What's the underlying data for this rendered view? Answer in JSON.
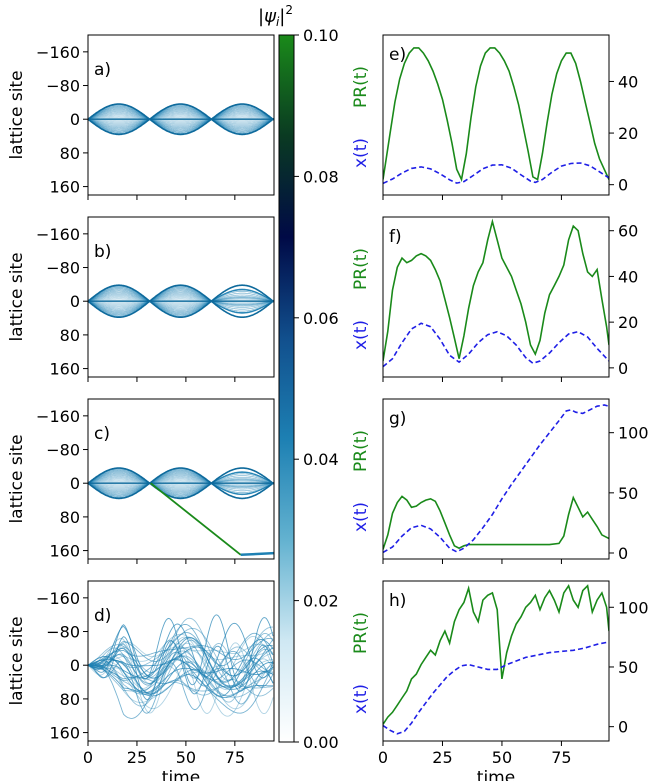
{
  "chart_data": [
    {
      "type": "heatmap",
      "panel_label": "a)",
      "xlabel": "",
      "ylabel": "lattice site",
      "xlim": [
        0,
        95
      ],
      "ylim": [
        180,
        -200
      ],
      "yticks": [
        -160,
        -80,
        0,
        80,
        160
      ],
      "xticks": [
        0,
        25,
        50,
        75
      ],
      "pattern": "periodic breathing wavepacket",
      "envelope": {
        "amplitude": 36,
        "period": 31.5,
        "max_time": 95
      }
    },
    {
      "type": "heatmap",
      "panel_label": "b)",
      "xlabel": "",
      "ylabel": "lattice site",
      "xlim": [
        0,
        95
      ],
      "ylim": [
        180,
        -200
      ],
      "yticks": [
        -160,
        -80,
        0,
        80,
        160
      ],
      "xticks": [
        0,
        25,
        50,
        75
      ],
      "pattern": "breathing wavepacket with slight dephasing",
      "envelope": {
        "amplitude": 38,
        "period": 31.5,
        "max_time": 95
      }
    },
    {
      "type": "heatmap",
      "panel_label": "c)",
      "xlabel": "",
      "ylabel": "lattice site",
      "xlim": [
        0,
        95
      ],
      "ylim": [
        180,
        -200
      ],
      "yticks": [
        -160,
        -80,
        0,
        80,
        160
      ],
      "xticks": [
        0,
        25,
        50,
        75
      ],
      "pattern": "breathing wavepacket with a ballistic branch",
      "envelope": {
        "amplitude": 36,
        "period": 31.5,
        "max_time": 95
      },
      "branch": {
        "t_start": 32,
        "x_start": 0,
        "t_end": 78,
        "x_end": 170
      }
    },
    {
      "type": "heatmap",
      "panel_label": "d)",
      "xlabel": "time",
      "ylabel": "lattice site",
      "xlim": [
        0,
        95
      ],
      "ylim": [
        180,
        -200
      ],
      "yticks": [
        -160,
        -80,
        0,
        80,
        160
      ],
      "xticks": [
        0,
        25,
        50,
        75
      ],
      "xticklabels": [
        "0",
        "25",
        "50",
        "75"
      ],
      "pattern": "diffuse spreading wavepacket"
    },
    {
      "type": "line",
      "panel_label": "e)",
      "xlabel": "",
      "ylabel_left_top": "PR(t)",
      "ylabel_left_bottom": "x(t)",
      "xlim": [
        0,
        95
      ],
      "ylim": [
        -4,
        58
      ],
      "yticks": [
        0,
        20,
        40
      ],
      "xticks": [
        0,
        25,
        50,
        75
      ],
      "series": [
        {
          "name": "PR(t)",
          "color": "#1a8a1a",
          "style": "solid",
          "x": [
            0,
            1,
            3,
            5,
            7,
            9,
            11,
            13,
            15,
            17,
            19,
            21,
            23,
            25,
            27,
            29,
            31,
            33,
            35,
            37,
            39,
            41,
            43,
            45,
            47,
            49,
            51,
            53,
            55,
            57,
            59,
            61,
            63,
            65,
            67,
            69,
            71,
            73,
            75,
            77,
            79,
            81,
            83,
            85,
            87,
            89,
            91,
            93,
            95
          ],
          "y": [
            2,
            8,
            20,
            32,
            41,
            47,
            51,
            53,
            53,
            51,
            48,
            44,
            39,
            33,
            25,
            16,
            6,
            2,
            12,
            26,
            38,
            46,
            51,
            53,
            53,
            51,
            48,
            44,
            38,
            31,
            22,
            13,
            3,
            2,
            12,
            24,
            35,
            43,
            48,
            51,
            51,
            47,
            40,
            32,
            24,
            16,
            10,
            6,
            2
          ]
        },
        {
          "name": "x(t)",
          "color": "#1f1fe6",
          "style": "dashed",
          "x": [
            0,
            4,
            8,
            12,
            16,
            20,
            24,
            28,
            31,
            34,
            38,
            42,
            46,
            50,
            54,
            58,
            62,
            64,
            67,
            71,
            75,
            79,
            83,
            87,
            91,
            95
          ],
          "y": [
            0.5,
            2.2,
            4.5,
            6.3,
            6.9,
            6.1,
            4.2,
            1.9,
            0.6,
            1.2,
            3.6,
            6.2,
            7.6,
            7.7,
            6.4,
            3.8,
            1.4,
            0.9,
            2.0,
            4.8,
            7.2,
            8.2,
            8.4,
            7.3,
            5.0,
            2.6
          ]
        }
      ]
    },
    {
      "type": "line",
      "panel_label": "f)",
      "xlabel": "",
      "ylabel_left_top": "PR(t)",
      "ylabel_left_bottom": "x(t)",
      "xlim": [
        0,
        95
      ],
      "ylim": [
        -4,
        66
      ],
      "yticks": [
        0,
        20,
        40,
        60
      ],
      "xticks": [
        0,
        25,
        50,
        75
      ],
      "series": [
        {
          "name": "PR(t)",
          "color": "#1a8a1a",
          "style": "solid",
          "x": [
            0,
            2,
            4,
            6,
            8,
            10,
            12,
            14,
            16,
            18,
            20,
            22,
            24,
            26,
            28,
            30,
            32,
            34,
            36,
            38,
            40,
            42,
            44,
            46,
            48,
            50,
            52,
            54,
            56,
            58,
            60,
            62,
            64,
            66,
            68,
            70,
            72,
            74,
            76,
            78,
            80,
            82,
            84,
            86,
            88,
            90,
            92,
            94,
            95
          ],
          "y": [
            3,
            16,
            34,
            44,
            48,
            46,
            47,
            49,
            50,
            49,
            47,
            43,
            38,
            30,
            22,
            13,
            4,
            14,
            26,
            36,
            42,
            46,
            56,
            64,
            56,
            48,
            44,
            40,
            34,
            28,
            20,
            10,
            6,
            12,
            24,
            32,
            36,
            40,
            45,
            56,
            62,
            60,
            50,
            42,
            40,
            43,
            30,
            18,
            10
          ]
        },
        {
          "name": "x(t)",
          "color": "#1f1fe6",
          "style": "dashed",
          "x": [
            0,
            4,
            8,
            12,
            16,
            20,
            24,
            28,
            32,
            36,
            40,
            44,
            48,
            52,
            56,
            60,
            63,
            66,
            70,
            74,
            78,
            82,
            86,
            90,
            95
          ],
          "y": [
            0.5,
            4,
            11,
            17,
            19.5,
            18,
            12.5,
            5.5,
            2.5,
            6,
            11,
            14.5,
            15.8,
            14,
            10,
            4.5,
            2,
            3,
            6.5,
            11,
            14.8,
            15.8,
            13.5,
            8.5,
            3
          ]
        }
      ]
    },
    {
      "type": "line",
      "panel_label": "g)",
      "xlabel": "",
      "ylabel_left_top": "PR(t)",
      "ylabel_left_bottom": "x(t)",
      "xlim": [
        0,
        95
      ],
      "ylim": [
        -5,
        128
      ],
      "yticks": [
        0,
        50,
        100
      ],
      "xticks": [
        0,
        25,
        50,
        75
      ],
      "series": [
        {
          "name": "PR(t)",
          "color": "#1a8a1a",
          "style": "solid",
          "x": [
            0,
            2,
            4,
            6,
            8,
            10,
            12,
            14,
            16,
            18,
            20,
            22,
            24,
            26,
            28,
            30,
            32,
            34,
            36,
            40,
            50,
            60,
            70,
            74,
            76,
            78,
            80,
            82,
            84,
            86,
            88,
            90,
            92,
            94,
            95
          ],
          "y": [
            3,
            15,
            33,
            42,
            47,
            44,
            38,
            39,
            42,
            44,
            45,
            43,
            35,
            25,
            15,
            6,
            4,
            6,
            7,
            7,
            7,
            7,
            7,
            8,
            14,
            32,
            46,
            38,
            30,
            34,
            28,
            22,
            15,
            13,
            12
          ]
        },
        {
          "name": "x(t)",
          "color": "#1f1fe6",
          "style": "dashed",
          "x": [
            0,
            4,
            8,
            12,
            16,
            20,
            24,
            28,
            31,
            34,
            38,
            42,
            46,
            50,
            54,
            58,
            62,
            66,
            70,
            74,
            77,
            79,
            81,
            84,
            87,
            90,
            93,
            95
          ],
          "y": [
            0.5,
            5,
            14,
            21,
            23,
            20,
            13,
            4,
            1,
            4,
            11,
            21,
            32,
            45,
            57,
            68,
            79,
            90,
            100,
            110,
            118,
            119,
            117,
            116,
            119,
            122,
            123,
            122
          ]
        }
      ]
    },
    {
      "type": "line",
      "panel_label": "h)",
      "xlabel": "time",
      "ylabel_left_top": "PR(t)",
      "ylabel_left_bottom": "x(t)",
      "xlim": [
        0,
        95
      ],
      "ylim": [
        -12,
        122
      ],
      "yticks": [
        0,
        50,
        100
      ],
      "xticks": [
        0,
        25,
        50,
        75
      ],
      "xticklabels": [
        "0",
        "25",
        "50",
        "75"
      ],
      "series": [
        {
          "name": "PR(t)",
          "color": "#1a8a1a",
          "style": "solid",
          "x": [
            0,
            2,
            4,
            6,
            8,
            10,
            12,
            14,
            16,
            18,
            20,
            22,
            24,
            26,
            28,
            30,
            32,
            34,
            36,
            38,
            40,
            42,
            44,
            46,
            48,
            50,
            52,
            54,
            56,
            58,
            60,
            62,
            64,
            66,
            68,
            70,
            72,
            74,
            76,
            78,
            80,
            82,
            84,
            86,
            88,
            90,
            92,
            94,
            95
          ],
          "y": [
            2,
            8,
            12,
            18,
            24,
            30,
            40,
            44,
            52,
            58,
            64,
            60,
            72,
            80,
            70,
            88,
            98,
            104,
            116,
            96,
            88,
            106,
            110,
            112,
            98,
            40,
            62,
            76,
            86,
            92,
            100,
            104,
            110,
            98,
            108,
            114,
            106,
            96,
            112,
            118,
            106,
            100,
            114,
            118,
            96,
            106,
            112,
            100,
            80
          ]
        },
        {
          "name": "x(t)",
          "color": "#1f1fe6",
          "style": "dashed",
          "x": [
            0,
            3,
            6,
            9,
            12,
            15,
            18,
            21,
            24,
            27,
            30,
            33,
            36,
            40,
            44,
            48,
            52,
            56,
            60,
            65,
            70,
            75,
            80,
            85,
            90,
            95
          ],
          "y": [
            1,
            -3,
            -6,
            -4,
            3,
            12,
            20,
            28,
            35,
            42,
            47,
            51,
            52,
            50,
            48,
            48,
            52,
            55,
            58,
            60,
            62,
            63,
            64,
            66,
            69,
            71
          ]
        }
      ]
    }
  ],
  "colorbar": {
    "label": "|ψ_i|²",
    "label_main": "|ψ",
    "label_sub": "i",
    "label_sup": "2",
    "min": 0,
    "max": 0.1,
    "tick_values": [
      0.0,
      0.02,
      0.04,
      0.06,
      0.08,
      0.1
    ],
    "tick_labels": [
      "0.00",
      "0.02",
      "0.04",
      "0.06",
      "0.08",
      "0.10"
    ],
    "colors": [
      "#ffffff",
      "#cfe8f3",
      "#63b2d0",
      "#1d80b3",
      "#114f8d",
      "#000a46",
      "#0a3a22",
      "#1a8a1a"
    ]
  },
  "colors": {
    "pr": "#1a8a1a",
    "x": "#1f1fe6",
    "density": "#1d80b3"
  }
}
